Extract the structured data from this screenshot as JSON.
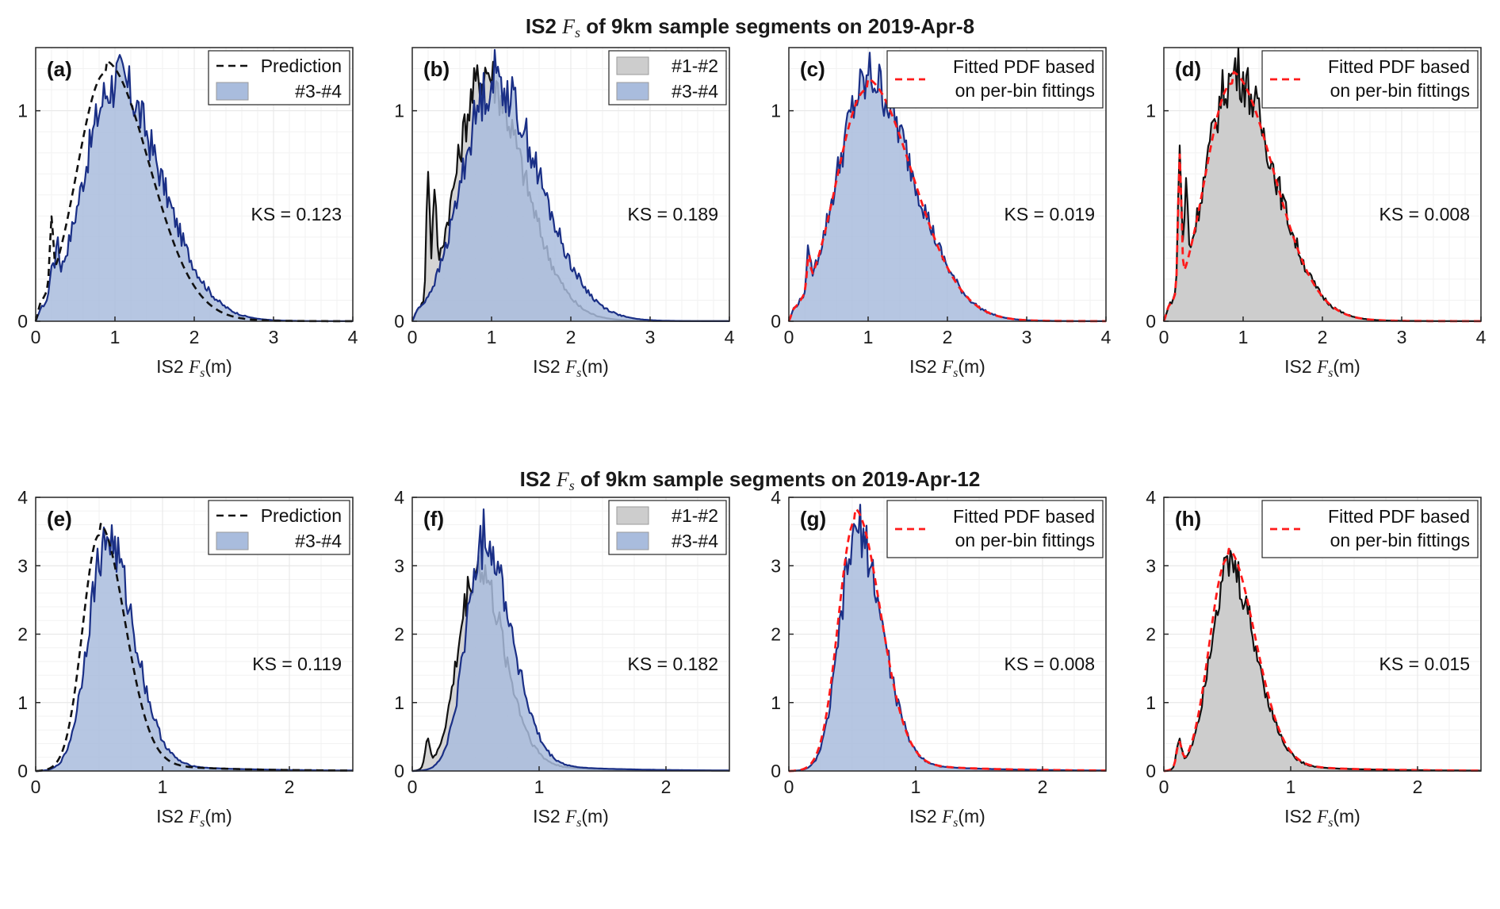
{
  "figure": {
    "row_titles": [
      {
        "prefix": "IS2 ",
        "var": "F",
        "sub": "s",
        "suffix": " of 9km sample segments on 2019-Apr-8"
      },
      {
        "prefix": "IS2 ",
        "var": "F",
        "sub": "s",
        "suffix": " of 9km sample segments on 2019-Apr-12"
      }
    ],
    "xlabel": {
      "prefix": "IS2 ",
      "var": "F",
      "sub": "s",
      "unit": "(m)"
    }
  },
  "colors": {
    "blue_fill": "#a9bcdd",
    "blue_line": "#1a2f86",
    "gray_fill": "#cdcdcd",
    "gray_line_dark": "#111111",
    "gray_line_light": "#8c96a8",
    "pred_line": "#111111",
    "fit_line": "#ff1a1a"
  },
  "chart_data": [
    {
      "type": "area",
      "panel": "(a)",
      "xlim": [
        0,
        4
      ],
      "ylim": [
        0,
        1.3
      ],
      "xticks": [
        0,
        1,
        2,
        3,
        4
      ],
      "yticks": [
        0,
        1
      ],
      "ks": "KS = 0.123",
      "legend": [
        {
          "label": "Prediction",
          "style": "pred"
        },
        {
          "label": "#3-#4",
          "style": "blue"
        }
      ],
      "series": [
        {
          "name": "#3-#4",
          "style": "blue",
          "mu": 0.98,
          "sigma": 0.38,
          "peak": 1.12,
          "spikes": [
            [
              0.2,
              0.15
            ],
            [
              0.27,
              0.22
            ]
          ]
        },
        {
          "name": "Prediction",
          "style": "pred",
          "mu": 0.88,
          "sigma": 0.36,
          "peak": 1.18,
          "spikes": [
            [
              0.2,
              0.3
            ]
          ]
        }
      ]
    },
    {
      "type": "area",
      "panel": "(b)",
      "xlim": [
        0,
        4
      ],
      "ylim": [
        0,
        1.3
      ],
      "xticks": [
        0,
        1,
        2,
        3,
        4
      ],
      "yticks": [
        0,
        1
      ],
      "ks": "KS = 0.189",
      "legend": [
        {
          "label": "#1-#2",
          "style": "gray"
        },
        {
          "label": "#3-#4",
          "style": "blue"
        }
      ],
      "series": [
        {
          "name": "#1-#2",
          "style": "gray",
          "mu": 0.88,
          "sigma": 0.33,
          "peak": 1.15,
          "spikes": [
            [
              0.2,
              0.62
            ],
            [
              0.28,
              0.45
            ]
          ]
        },
        {
          "name": "#3-#4",
          "style": "blue",
          "mu": 1.0,
          "sigma": 0.38,
          "peak": 1.12,
          "spikes": []
        }
      ]
    },
    {
      "type": "area",
      "panel": "(c)",
      "xlim": [
        0,
        4
      ],
      "ylim": [
        0,
        1.3
      ],
      "xticks": [
        0,
        1,
        2,
        3,
        4
      ],
      "yticks": [
        0,
        1
      ],
      "ks": "KS = 0.019",
      "legend": [
        {
          "label": "Fitted PDF based",
          "label2": "on per-bin fittings",
          "style": "fit"
        }
      ],
      "series": [
        {
          "name": "#3-#4",
          "style": "blue",
          "mu": 0.98,
          "sigma": 0.38,
          "peak": 1.12,
          "spikes": [
            [
              0.25,
              0.18
            ]
          ]
        },
        {
          "name": "Fitted PDF",
          "style": "fit",
          "mu": 0.98,
          "sigma": 0.38,
          "peak": 1.1,
          "spikes": [
            [
              0.25,
              0.15
            ]
          ]
        }
      ]
    },
    {
      "type": "area",
      "panel": "(d)",
      "xlim": [
        0,
        4
      ],
      "ylim": [
        0,
        1.3
      ],
      "xticks": [
        0,
        1,
        2,
        3,
        4
      ],
      "yticks": [
        0,
        1
      ],
      "ks": "KS = 0.008",
      "legend": [
        {
          "label": "Fitted PDF based",
          "label2": "on per-bin fittings",
          "style": "fit"
        }
      ],
      "series": [
        {
          "name": "#1-#2",
          "style": "grayfill",
          "mu": 0.86,
          "sigma": 0.34,
          "peak": 1.15,
          "spikes": [
            [
              0.2,
              0.68
            ],
            [
              0.28,
              0.4
            ]
          ]
        },
        {
          "name": "Fitted PDF",
          "style": "fit",
          "mu": 0.86,
          "sigma": 0.34,
          "peak": 1.13,
          "spikes": [
            [
              0.2,
              0.62
            ]
          ]
        }
      ]
    },
    {
      "type": "area",
      "panel": "(e)",
      "xlim": [
        0,
        2.5
      ],
      "ylim": [
        0,
        4
      ],
      "xticks": [
        0,
        1,
        2
      ],
      "yticks": [
        0,
        1,
        2,
        3,
        4
      ],
      "ks": "KS = 0.119",
      "legend": [
        {
          "label": "Prediction",
          "style": "pred"
        },
        {
          "label": "#3-#4",
          "style": "blue"
        }
      ],
      "series": [
        {
          "name": "#3-#4",
          "style": "blue",
          "mu": 0.55,
          "sigma": 0.14,
          "peak": 3.3,
          "spikes": []
        },
        {
          "name": "Prediction",
          "style": "pred",
          "mu": 0.5,
          "sigma": 0.13,
          "peak": 3.45,
          "spikes": []
        }
      ]
    },
    {
      "type": "area",
      "panel": "(f)",
      "xlim": [
        0,
        2.5
      ],
      "ylim": [
        0,
        4
      ],
      "xticks": [
        0,
        1,
        2
      ],
      "yticks": [
        0,
        1,
        2,
        3,
        4
      ],
      "ks": "KS = 0.182",
      "legend": [
        {
          "label": "#1-#2",
          "style": "gray"
        },
        {
          "label": "#3-#4",
          "style": "blue"
        }
      ],
      "series": [
        {
          "name": "#1-#2",
          "style": "gray",
          "mu": 0.5,
          "sigma": 0.14,
          "peak": 2.9,
          "spikes": [
            [
              0.12,
              0.4
            ]
          ]
        },
        {
          "name": "#3-#4",
          "style": "blue",
          "mu": 0.56,
          "sigma": 0.14,
          "peak": 3.3,
          "spikes": []
        }
      ]
    },
    {
      "type": "area",
      "panel": "(g)",
      "xlim": [
        0,
        2.5
      ],
      "ylim": [
        0,
        4
      ],
      "xticks": [
        0,
        1,
        2
      ],
      "yticks": [
        0,
        1,
        2,
        3,
        4
      ],
      "ks": "KS = 0.008",
      "legend": [
        {
          "label": "Fitted PDF based",
          "label2": "on per-bin fittings",
          "style": "fit"
        }
      ],
      "series": [
        {
          "name": "#3-#4",
          "style": "blue",
          "mu": 0.53,
          "sigma": 0.13,
          "peak": 3.4,
          "spikes": []
        },
        {
          "name": "Fitted PDF",
          "style": "fit",
          "mu": 0.52,
          "sigma": 0.13,
          "peak": 3.65,
          "spikes": []
        }
      ]
    },
    {
      "type": "area",
      "panel": "(h)",
      "xlim": [
        0,
        2.5
      ],
      "ylim": [
        0,
        4
      ],
      "xticks": [
        0,
        1,
        2
      ],
      "yticks": [
        0,
        1,
        2,
        3,
        4
      ],
      "ks": "KS = 0.015",
      "legend": [
        {
          "label": "Fitted PDF based",
          "label2": "on per-bin fittings",
          "style": "fit"
        }
      ],
      "series": [
        {
          "name": "#1-#2",
          "style": "grayfill",
          "mu": 0.5,
          "sigma": 0.14,
          "peak": 2.9,
          "spikes": [
            [
              0.12,
              0.38
            ]
          ]
        },
        {
          "name": "Fitted PDF",
          "style": "fit",
          "mu": 0.5,
          "sigma": 0.14,
          "peak": 3.1,
          "spikes": [
            [
              0.12,
              0.35
            ]
          ]
        }
      ]
    }
  ]
}
